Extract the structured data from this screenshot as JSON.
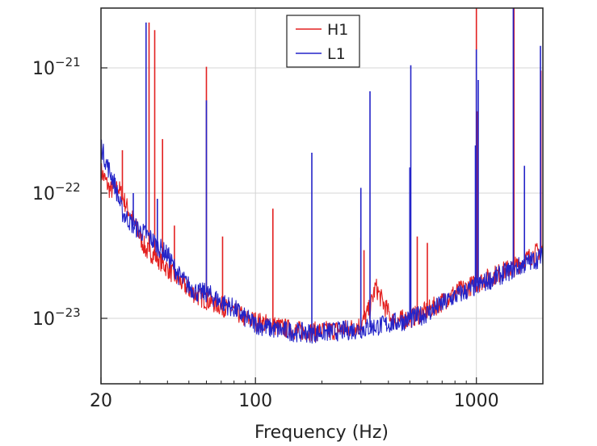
{
  "chart_data": {
    "type": "line",
    "title": "",
    "xlabel": "Frequency (Hz)",
    "ylabel": "",
    "xscale": "log",
    "yscale": "log",
    "xlim": [
      20,
      2000
    ],
    "ylim": [
      3e-24,
      3e-21
    ],
    "grid": true,
    "legend_position": "top-center",
    "x_ticks": [
      {
        "value": 20,
        "label": "20"
      },
      {
        "value": 100,
        "label": "100"
      },
      {
        "value": 1000,
        "label": "1000"
      }
    ],
    "y_ticks": [
      {
        "value": 1e-23,
        "base": "10",
        "exp": "−23"
      },
      {
        "value": 1e-22,
        "base": "10",
        "exp": "−22"
      },
      {
        "value": 1e-21,
        "base": "10",
        "exp": "−21"
      }
    ],
    "series": [
      {
        "name": "H1",
        "color": "#e32020",
        "baseline": [
          [
            20,
            1.5e-22
          ],
          [
            22,
            1.05e-22
          ],
          [
            24,
            1.1e-22
          ],
          [
            26,
            8e-23
          ],
          [
            28,
            6e-23
          ],
          [
            30,
            4.5e-23
          ],
          [
            32,
            3.5e-23
          ],
          [
            35,
            3.2e-23
          ],
          [
            40,
            2.5e-23
          ],
          [
            45,
            2e-23
          ],
          [
            50,
            1.7e-23
          ],
          [
            55,
            1.5e-23
          ],
          [
            60,
            1.4e-23
          ],
          [
            70,
            1.25e-23
          ],
          [
            80,
            1.15e-23
          ],
          [
            90,
            1e-23
          ],
          [
            100,
            9.5e-24
          ],
          [
            120,
            8.8e-24
          ],
          [
            150,
            8e-24
          ],
          [
            180,
            7.8e-24
          ],
          [
            220,
            8e-24
          ],
          [
            260,
            8.2e-24
          ],
          [
            300,
            8.8e-24
          ],
          [
            330,
            1.2e-23
          ],
          [
            350,
            1.8e-23
          ],
          [
            380,
            1.3e-23
          ],
          [
            420,
            9.5e-24
          ],
          [
            500,
            1e-23
          ],
          [
            600,
            1.15e-23
          ],
          [
            700,
            1.35e-23
          ],
          [
            800,
            1.6e-23
          ],
          [
            1000,
            1.9e-23
          ],
          [
            1200,
            2.2e-23
          ],
          [
            1500,
            2.6e-23
          ],
          [
            1800,
            3.2e-23
          ],
          [
            2000,
            3.6e-23
          ]
        ],
        "lines": [
          [
            25,
            2.2e-22
          ],
          [
            33,
            2.3e-21
          ],
          [
            35,
            2e-21
          ],
          [
            38,
            2.7e-22
          ],
          [
            43,
            5.5e-23
          ],
          [
            60,
            1.02e-21
          ],
          [
            71,
            4.5e-23
          ],
          [
            120,
            7.5e-23
          ],
          [
            300,
            4.4e-23
          ],
          [
            310,
            3.5e-23
          ],
          [
            540,
            4.5e-23
          ],
          [
            600,
            4e-23
          ],
          [
            1000,
            3e-21
          ],
          [
            1010,
            4.5e-22
          ],
          [
            1480,
            3e-21
          ],
          [
            1960,
            9.5e-22
          ]
        ]
      },
      {
        "name": "L1",
        "color": "#2424c8",
        "baseline": [
          [
            20,
            2.4e-22
          ],
          [
            21,
            1.8e-22
          ],
          [
            23,
            1.2e-22
          ],
          [
            25,
            7e-23
          ],
          [
            28,
            5.5e-23
          ],
          [
            30,
            5e-23
          ],
          [
            33,
            4.5e-23
          ],
          [
            36,
            3.8e-23
          ],
          [
            40,
            3.2e-23
          ],
          [
            45,
            2.2e-23
          ],
          [
            50,
            1.8e-23
          ],
          [
            55,
            1.6e-23
          ],
          [
            60,
            1.6e-23
          ],
          [
            70,
            1.35e-23
          ],
          [
            80,
            1.2e-23
          ],
          [
            90,
            1e-23
          ],
          [
            100,
            9e-24
          ],
          [
            120,
            8.2e-24
          ],
          [
            150,
            7.8e-24
          ],
          [
            180,
            7.6e-24
          ],
          [
            220,
            7.8e-24
          ],
          [
            260,
            8e-24
          ],
          [
            300,
            8.2e-24
          ],
          [
            350,
            8.6e-24
          ],
          [
            400,
            9e-24
          ],
          [
            500,
            9.8e-24
          ],
          [
            600,
            1.1e-23
          ],
          [
            700,
            1.3e-23
          ],
          [
            800,
            1.5e-23
          ],
          [
            1000,
            1.8e-23
          ],
          [
            1200,
            2.1e-23
          ],
          [
            1500,
            2.5e-23
          ],
          [
            1800,
            2.9e-23
          ],
          [
            2000,
            3.1e-23
          ]
        ],
        "lines": [
          [
            28,
            1e-22
          ],
          [
            32,
            2.3e-21
          ],
          [
            36,
            9e-23
          ],
          [
            60,
            5.5e-22
          ],
          [
            180,
            2.1e-22
          ],
          [
            300,
            1.1e-22
          ],
          [
            330,
            6.5e-22
          ],
          [
            500,
            1.6e-22
          ],
          [
            505,
            1.05e-21
          ],
          [
            990,
            2.4e-22
          ],
          [
            1000,
            1.4e-21
          ],
          [
            1020,
            8e-22
          ],
          [
            1470,
            3e-21
          ],
          [
            1650,
            1.65e-22
          ],
          [
            1950,
            1.5e-21
          ]
        ]
      }
    ]
  }
}
